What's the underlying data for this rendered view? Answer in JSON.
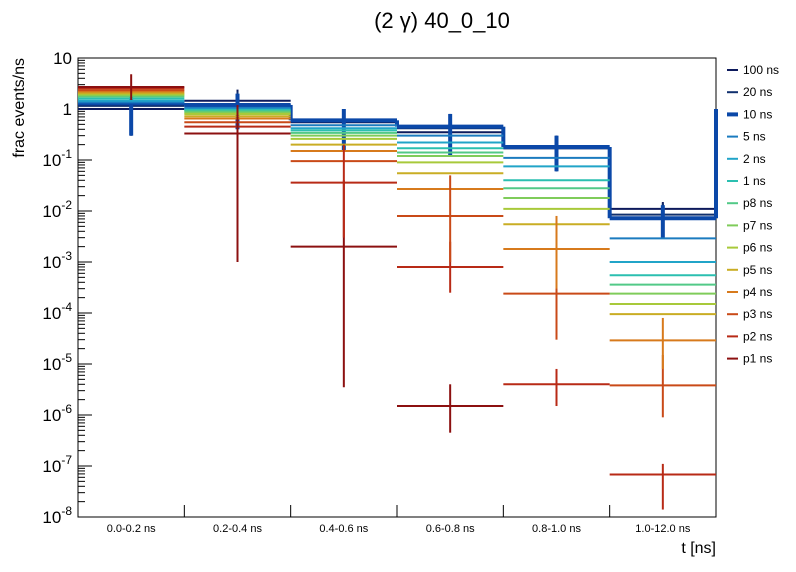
{
  "chart_data": {
    "type": "histogram",
    "title": "(2 γ) 40_0_10",
    "xlabel": "t [ns]",
    "ylabel": "frac events/ns",
    "yscale": "log",
    "ylim": [
      1e-08,
      10
    ],
    "y_ticks": [
      {
        "base": "10",
        "exp": "-8"
      },
      {
        "base": "10",
        "exp": "-7"
      },
      {
        "base": "10",
        "exp": "-6"
      },
      {
        "base": "10",
        "exp": "-5"
      },
      {
        "base": "10",
        "exp": "-4"
      },
      {
        "base": "10",
        "exp": "-3"
      },
      {
        "base": "10",
        "exp": "-2"
      },
      {
        "base": "10",
        "exp": "-1"
      },
      {
        "base": "1",
        "exp": ""
      },
      {
        "base": "10",
        "exp": ""
      }
    ],
    "categories": [
      "0.0-0.2 ns",
      "0.2-0.4 ns",
      "0.4-0.6 ns",
      "0.6-0.8 ns",
      "0.8-1.0 ns",
      "1.0-12.0 ns"
    ],
    "series": [
      {
        "name": "100 ns",
        "color": "#0d1a5c",
        "values": [
          1.0,
          1.45,
          0.55,
          0.35,
          0.17,
          0.011
        ],
        "errors_lo": [
          0.3,
          0.6,
          0.2,
          0.15,
          0.06,
          0.005
        ],
        "errors_hi": [
          1.9,
          2.4,
          1.0,
          0.75,
          0.3,
          0.015
        ]
      },
      {
        "name": "20 ns",
        "color": "#10306e",
        "values": [
          1.15,
          1.2,
          0.58,
          0.42,
          0.17,
          0.0085
        ],
        "errors_lo": [
          0.3,
          0.5,
          0.2,
          0.15,
          0.06,
          0.004
        ],
        "errors_hi": [
          2.0,
          2.2,
          1.0,
          0.8,
          0.3,
          0.014
        ]
      },
      {
        "name": "10 ns",
        "color": "#0b48a8",
        "values": [
          1.3,
          1.2,
          0.6,
          0.45,
          0.18,
          0.0072
        ],
        "errors_lo": [
          0.3,
          0.4,
          0.15,
          0.12,
          0.06,
          0.003
        ],
        "errors_hi": [
          2.0,
          2.0,
          1.0,
          0.8,
          0.3,
          0.013
        ],
        "thick": true
      },
      {
        "name": "5 ns",
        "color": "#1b7bbf",
        "values": [
          1.35,
          1.05,
          0.48,
          0.3,
          0.11,
          0.0029
        ]
      },
      {
        "name": "2 ns",
        "color": "#21a4c8",
        "values": [
          1.45,
          0.98,
          0.42,
          0.22,
          0.075,
          0.001
        ]
      },
      {
        "name": "1 ns",
        "color": "#2bbfb0",
        "values": [
          1.6,
          0.95,
          0.38,
          0.17,
          0.04,
          0.00055
        ]
      },
      {
        "name": "p8 ns",
        "color": "#52c987",
        "values": [
          1.75,
          0.9,
          0.34,
          0.14,
          0.028,
          0.00036
        ]
      },
      {
        "name": "p7 ns",
        "color": "#7fcc5a",
        "values": [
          1.85,
          0.85,
          0.3,
          0.12,
          0.018,
          0.00024
        ]
      },
      {
        "name": "p6 ns",
        "color": "#a8c93a",
        "values": [
          1.95,
          0.8,
          0.26,
          0.09,
          0.011,
          0.00015
        ]
      },
      {
        "name": "p5 ns",
        "color": "#c9ad24",
        "values": [
          2.05,
          0.72,
          0.2,
          0.055,
          0.0055,
          9.5e-05
        ]
      },
      {
        "name": "p4 ns",
        "color": "#d77a1c",
        "values": [
          2.2,
          0.65,
          0.15,
          0.027,
          0.0018,
          2.9e-05
        ]
      },
      {
        "name": "p3 ns",
        "color": "#c94a18",
        "values": [
          2.35,
          0.55,
          0.095,
          0.008,
          0.00024,
          3.8e-06
        ]
      },
      {
        "name": "p2 ns",
        "color": "#b82a16",
        "values": [
          2.55,
          0.45,
          0.036,
          0.0008,
          4e-06,
          6.8e-08
        ]
      },
      {
        "name": "p1 ns",
        "color": "#8c1010",
        "values": [
          2.7,
          0.33,
          0.002,
          1.5e-06,
          null,
          null
        ]
      }
    ],
    "error_bars": [
      {
        "series": "p1 ns",
        "bin": 0,
        "lo": 1.5,
        "hi": 4.8
      },
      {
        "series": "p1 ns",
        "bin": 1,
        "lo": 0.001,
        "hi": 1.2
      },
      {
        "series": "p1 ns",
        "bin": 2,
        "lo": 3.5e-06,
        "hi": 0.04
      },
      {
        "series": "p1 ns",
        "bin": 3,
        "lo": 4.5e-07,
        "hi": 4e-06
      },
      {
        "series": "p2 ns",
        "bin": 2,
        "lo": 0.003,
        "hi": 0.2
      },
      {
        "series": "p2 ns",
        "bin": 3,
        "lo": 0.00025,
        "hi": 0.0025
      },
      {
        "series": "p2 ns",
        "bin": 4,
        "lo": 1.5e-06,
        "hi": 8e-06
      },
      {
        "series": "p2 ns",
        "bin": 5,
        "lo": 1.4e-08,
        "hi": 1.1e-07
      },
      {
        "series": "p3 ns",
        "bin": 3,
        "lo": 0.001,
        "hi": 0.05
      },
      {
        "series": "p3 ns",
        "bin": 4,
        "lo": 3e-05,
        "hi": 0.0015
      },
      {
        "series": "p3 ns",
        "bin": 5,
        "lo": 9e-07,
        "hi": 1.5e-05
      },
      {
        "series": "p4 ns",
        "bin": 4,
        "lo": 0.0003,
        "hi": 0.008
      },
      {
        "series": "p4 ns",
        "bin": 5,
        "lo": 8e-06,
        "hi": 8e-05
      }
    ],
    "legend": {
      "position": "right"
    },
    "grid": false
  }
}
